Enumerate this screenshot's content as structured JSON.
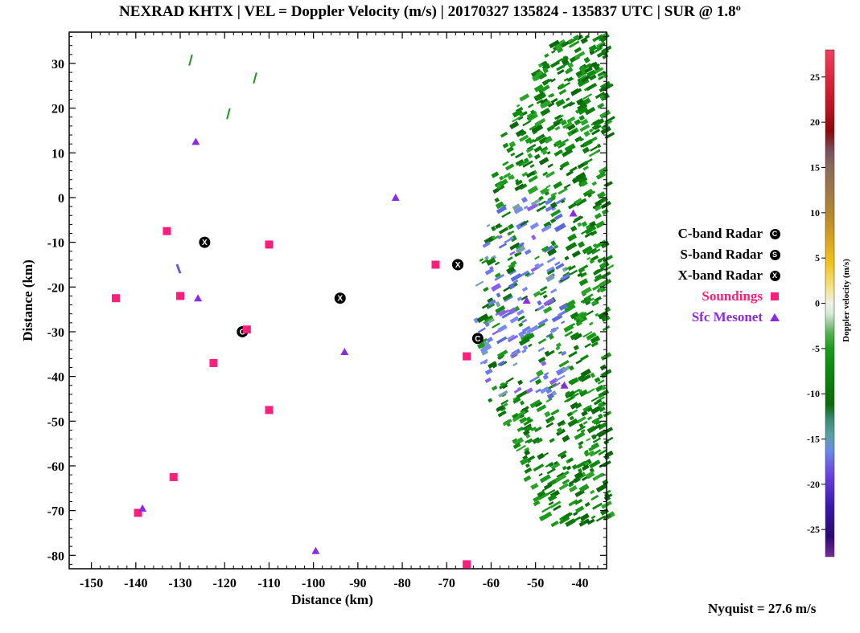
{
  "chart_data": {
    "type": "scatter",
    "title": "NEXRAD KHTX | VEL = Doppler Velocity (m/s) | 20170327 135824 - 135837 UTC | SUR @ 1.8º",
    "xlabel": "Distance (km)",
    "ylabel": "Distance (km)",
    "xlim": [
      -155,
      -34
    ],
    "ylim": [
      -83,
      37
    ],
    "xticks": [
      -150,
      -140,
      -130,
      -120,
      -110,
      -100,
      -90,
      -80,
      -70,
      -60,
      -50,
      -40
    ],
    "yticks": [
      30,
      20,
      10,
      0,
      -10,
      -20,
      -30,
      -40,
      -50,
      -60,
      -70,
      -80
    ],
    "series": [
      {
        "name": "C-band Radar",
        "marker": "C",
        "color": "#000000",
        "points": [
          [
            -116,
            -30
          ],
          [
            -63,
            -31.5
          ]
        ]
      },
      {
        "name": "S-band Radar",
        "marker": "S",
        "color": "#000000",
        "points": [
          [
            -67.5,
            -15
          ]
        ]
      },
      {
        "name": "X-band Radar",
        "marker": "X",
        "color": "#000000",
        "points": [
          [
            -124.5,
            -10
          ],
          [
            -94,
            -22.5
          ],
          [
            -67.5,
            -15
          ]
        ]
      },
      {
        "name": "Soundings",
        "marker": "square",
        "color": "#ff1f7a",
        "points": [
          [
            -133,
            -7.5
          ],
          [
            -110,
            -10.5
          ],
          [
            -72.5,
            -15
          ],
          [
            -144.5,
            -22.5
          ],
          [
            -130,
            -22
          ],
          [
            -115,
            -29.5
          ],
          [
            -122.5,
            -37
          ],
          [
            -65.5,
            -35.5
          ],
          [
            -110,
            -47.5
          ],
          [
            -131.5,
            -62.5
          ],
          [
            -139.5,
            -70.5
          ],
          [
            -65.5,
            -82
          ]
        ]
      },
      {
        "name": "Sfc Mesonet",
        "marker": "triangle",
        "color": "#8a2be2",
        "points": [
          [
            -126.5,
            12.5
          ],
          [
            -81.5,
            0
          ],
          [
            -126,
            -22.5
          ],
          [
            -93,
            -34.5
          ],
          [
            -138.5,
            -69.5
          ],
          [
            -99.5,
            -79
          ],
          [
            -52,
            -23
          ],
          [
            -41.5,
            -3.5
          ],
          [
            -43.5,
            -42
          ]
        ]
      }
    ],
    "colorbar": {
      "label": "Doppler velocity (m/s)",
      "min": -28,
      "max": 28,
      "ticks": [
        25,
        20,
        15,
        10,
        5,
        0,
        -5,
        -10,
        -15,
        -20,
        -25
      ]
    },
    "annotation": "Nyquist = 27.6 m/s"
  }
}
